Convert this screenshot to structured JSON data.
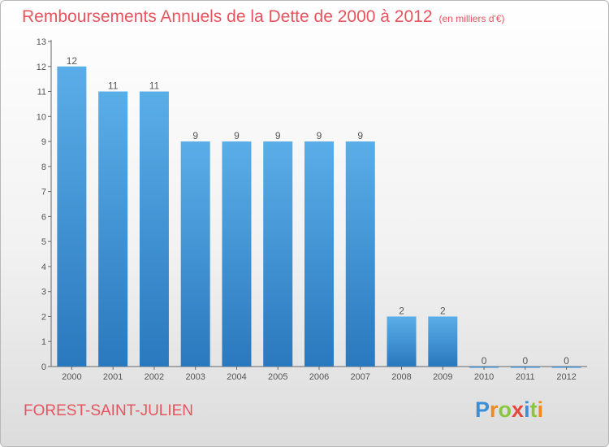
{
  "title": "Remboursements Annuels de la Dette de 2000 à 2012",
  "unit": "(en milliers d'€)",
  "place": "FOREST-SAINT-JULIEN",
  "brand": {
    "letters": [
      "P",
      "r",
      "o",
      "x",
      "i",
      "t",
      "i"
    ],
    "colors": [
      "#3a8fd6",
      "#f08a1c",
      "#8cc63f",
      "#e8473c",
      "#3a8fd6",
      "#8cc63f",
      "#f08a1c"
    ]
  },
  "colors": {
    "title": "#e8545e",
    "bar_light": "#5aaee8",
    "bar_dark": "#2a78be",
    "axis": "#666666",
    "label": "#555555"
  },
  "chart_data": {
    "type": "bar",
    "categories": [
      "2000",
      "2001",
      "2002",
      "2003",
      "2004",
      "2005",
      "2006",
      "2007",
      "2008",
      "2009",
      "2010",
      "2011",
      "2012"
    ],
    "values": [
      12,
      11,
      11,
      9,
      9,
      9,
      9,
      9,
      2,
      2,
      0,
      0,
      0
    ],
    "value_labels": [
      "12",
      "11",
      "11",
      "9",
      "9",
      "9",
      "9",
      "9",
      "2",
      "2",
      "0",
      "0",
      "0"
    ],
    "y_ticks": [
      "0",
      "1",
      "2",
      "3",
      "4",
      "5",
      "6",
      "7",
      "8",
      "9",
      "10",
      "11",
      "12",
      "13"
    ],
    "ylim": [
      0,
      13
    ],
    "grid": false,
    "legend": "none"
  }
}
